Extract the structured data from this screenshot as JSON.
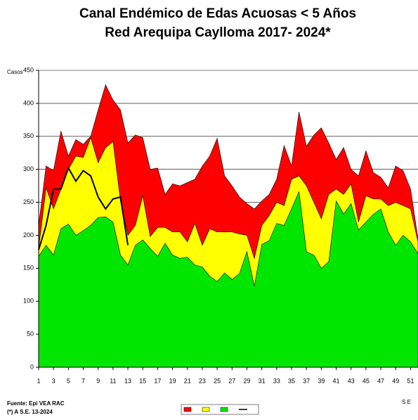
{
  "chart_data": {
    "type": "area",
    "title": "Canal Endémico de Edas Acuosas  < 5 Años",
    "subtitle": "Red Arequipa Caylloma 2017- 2024*",
    "y_label": "Casos",
    "x_label": "S E",
    "notes": [
      "Fuente: Epi VEA RAC",
      "(*) A S.E. 13-2024"
    ],
    "x": [
      1,
      2,
      3,
      4,
      5,
      6,
      7,
      8,
      9,
      10,
      11,
      12,
      13,
      14,
      15,
      16,
      17,
      18,
      19,
      20,
      21,
      22,
      23,
      24,
      25,
      26,
      27,
      28,
      29,
      30,
      31,
      32,
      33,
      34,
      35,
      36,
      37,
      38,
      39,
      40,
      41,
      42,
      43,
      44,
      45,
      46,
      47,
      48,
      49,
      50,
      51,
      52
    ],
    "xlim": [
      1,
      52
    ],
    "xticks": [
      1,
      3,
      5,
      7,
      9,
      11,
      13,
      15,
      17,
      19,
      21,
      23,
      25,
      27,
      29,
      31,
      33,
      35,
      37,
      39,
      41,
      43,
      45,
      47,
      49,
      51
    ],
    "ylim": [
      0,
      450
    ],
    "yticks": [
      0,
      50,
      100,
      150,
      200,
      250,
      300,
      350,
      400,
      450
    ],
    "series": [
      {
        "color": "#ff0000",
        "kind": "area",
        "values": [
          215,
          305,
          298,
          358,
          320,
          345,
          338,
          350,
          390,
          428,
          405,
          390,
          340,
          352,
          348,
          300,
          302,
          262,
          278,
          275,
          280,
          285,
          305,
          320,
          347,
          290,
          275,
          258,
          248,
          240,
          252,
          262,
          285,
          336,
          305,
          387,
          335,
          352,
          363,
          340,
          315,
          333,
          300,
          290,
          328,
          295,
          288,
          272,
          305,
          298,
          270,
          195
        ]
      },
      {
        "color": "#ffff00",
        "kind": "area",
        "values": [
          180,
          272,
          240,
          270,
          300,
          320,
          318,
          348,
          310,
          333,
          342,
          252,
          200,
          215,
          260,
          198,
          212,
          212,
          205,
          205,
          190,
          218,
          185,
          210,
          205,
          205,
          205,
          202,
          200,
          165,
          215,
          230,
          250,
          245,
          285,
          290,
          275,
          250,
          225,
          262,
          270,
          262,
          278,
          220,
          260,
          255,
          255,
          245,
          250,
          245,
          240,
          190
        ]
      },
      {
        "color": "#00e600",
        "kind": "area",
        "values": [
          168,
          185,
          170,
          210,
          217,
          200,
          207,
          215,
          227,
          228,
          220,
          170,
          155,
          185,
          193,
          180,
          168,
          188,
          170,
          165,
          167,
          155,
          152,
          138,
          130,
          143,
          133,
          142,
          175,
          123,
          186,
          192,
          218,
          215,
          240,
          266,
          175,
          170,
          150,
          160,
          252,
          232,
          248,
          208,
          220,
          232,
          240,
          205,
          185,
          200,
          190,
          172
        ]
      },
      {
        "color": "#000000",
        "kind": "line",
        "values": [
          178,
          215,
          270,
          270,
          302,
          282,
          298,
          290,
          258,
          240,
          255,
          258,
          185,
          null,
          null,
          null,
          null,
          null,
          null,
          null,
          null,
          null,
          null,
          null,
          null,
          null,
          null,
          null,
          null,
          null,
          null,
          null,
          null,
          null,
          null,
          null,
          null,
          null,
          null,
          null,
          null,
          null,
          null,
          null,
          null,
          null,
          null,
          null,
          null,
          null,
          null,
          null
        ]
      }
    ]
  }
}
